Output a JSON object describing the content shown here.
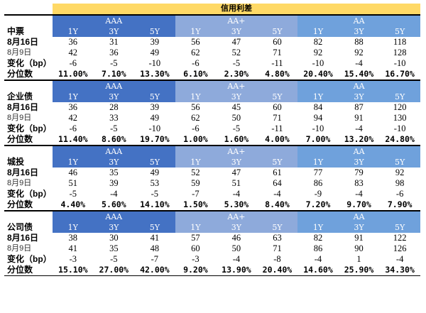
{
  "title": "信用利差",
  "groups": [
    "AAA",
    "AA+",
    "AA"
  ],
  "tenors": [
    "1Y",
    "3Y",
    "5Y"
  ],
  "labels": {
    "date_current": "8月16日",
    "date_prev": "8月9日",
    "change": "变化（bp）",
    "percentile": "分位数"
  },
  "sections": [
    {
      "name": "中票",
      "current": [
        "36",
        "31",
        "39",
        "56",
        "47",
        "60",
        "82",
        "88",
        "118"
      ],
      "previous": [
        "42",
        "36",
        "49",
        "62",
        "52",
        "71",
        "92",
        "92",
        "128"
      ],
      "change": [
        "-6",
        "-5",
        "-10",
        "-6",
        "-5",
        "-11",
        "-10",
        "-4",
        "-10"
      ],
      "percentile": [
        "11.00%",
        "7.10%",
        "13.30%",
        "6.10%",
        "2.30%",
        "4.80%",
        "20.40%",
        "15.40%",
        "16.70%"
      ]
    },
    {
      "name": "企业债",
      "current": [
        "36",
        "28",
        "39",
        "56",
        "45",
        "60",
        "84",
        "87",
        "120"
      ],
      "previous": [
        "42",
        "33",
        "49",
        "62",
        "50",
        "71",
        "94",
        "91",
        "130"
      ],
      "change": [
        "-6",
        "-5",
        "-10",
        "-6",
        "-5",
        "-11",
        "-10",
        "-4",
        "-10"
      ],
      "percentile": [
        "11.40%",
        "8.60%",
        "19.70%",
        "1.00%",
        "1.60%",
        "4.00%",
        "7.00%",
        "13.20%",
        "24.80%"
      ]
    },
    {
      "name": "城投",
      "current": [
        "46",
        "35",
        "49",
        "52",
        "47",
        "61",
        "77",
        "79",
        "92"
      ],
      "previous": [
        "51",
        "39",
        "53",
        "59",
        "51",
        "64",
        "86",
        "83",
        "98"
      ],
      "change": [
        "-5",
        "-4",
        "-5",
        "-7",
        "-4",
        "-4",
        "-9",
        "-4",
        "-6"
      ],
      "percentile": [
        "4.40%",
        "5.60%",
        "14.10%",
        "1.50%",
        "5.30%",
        "8.40%",
        "7.20%",
        "9.70%",
        "7.90%"
      ]
    },
    {
      "name": "公司债",
      "current": [
        "38",
        "30",
        "41",
        "57",
        "46",
        "63",
        "82",
        "91",
        "122"
      ],
      "previous": [
        "41",
        "35",
        "48",
        "60",
        "50",
        "71",
        "86",
        "90",
        "126"
      ],
      "change": [
        "-3",
        "-5",
        "-7",
        "-3",
        "-4",
        "-8",
        "-4",
        "1",
        "-4"
      ],
      "percentile": [
        "15.10%",
        "27.00%",
        "42.00%",
        "9.20%",
        "13.90%",
        "20.40%",
        "14.60%",
        "25.90%",
        "34.30%"
      ]
    }
  ]
}
